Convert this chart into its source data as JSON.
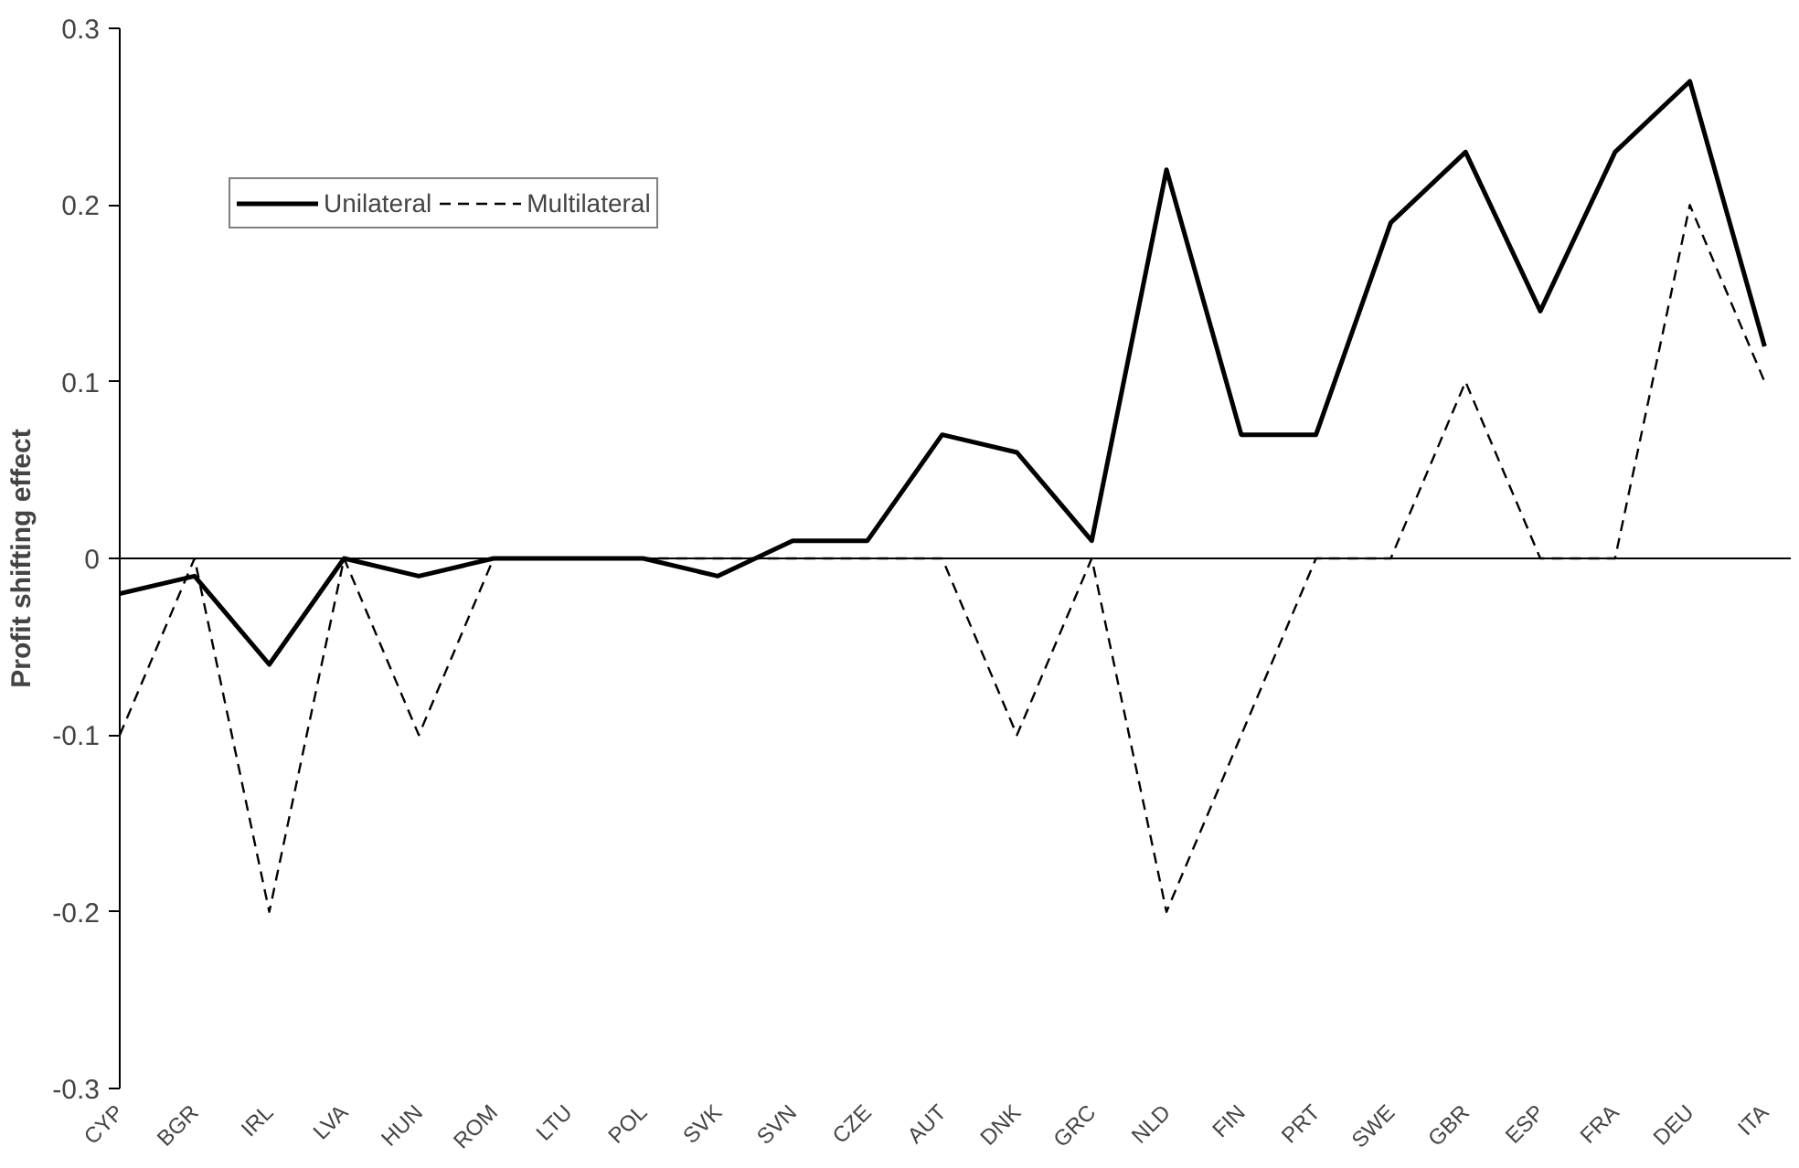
{
  "chart_data": {
    "type": "line",
    "ylabel": "Profit shifting effect",
    "categories": [
      "CYP",
      "BGR",
      "IRL",
      "LVA",
      "HUN",
      "ROM",
      "LTU",
      "POL",
      "SVK",
      "SVN",
      "CZE",
      "AUT",
      "DNK",
      "GRC",
      "NLD",
      "FIN",
      "PRT",
      "SWE",
      "GBR",
      "ESP",
      "FRA",
      "DEU",
      "ITA"
    ],
    "series": [
      {
        "name": "Unilateral",
        "color": "#000000",
        "line_style": "solid",
        "values": [
          -0.02,
          -0.01,
          -0.06,
          0,
          -0.01,
          0,
          0,
          0,
          -0.01,
          0.01,
          0.01,
          0.07,
          0.06,
          0.01,
          0.22,
          0.07,
          0.07,
          0.19,
          0.23,
          0.14,
          0.23,
          0.27,
          0.12
        ]
      },
      {
        "name": "Multilateral",
        "color": "#000000",
        "line_style": "dashed",
        "values": [
          -0.1,
          0,
          -0.2,
          0,
          -0.1,
          0,
          0,
          0,
          0,
          0,
          0,
          0,
          -0.1,
          0,
          -0.2,
          -0.1,
          0,
          0,
          0.1,
          0,
          0,
          0.2,
          0.1
        ]
      }
    ],
    "ylim": [
      -0.3,
      0.3
    ],
    "yticks": [
      -0.3,
      -0.2,
      -0.1,
      0,
      0.1,
      0.2,
      0.3
    ],
    "ref_lines": [
      {
        "axis": "y",
        "value": 0,
        "label": null
      }
    ],
    "legend": "top left",
    "grid": false,
    "marker": "none"
  }
}
